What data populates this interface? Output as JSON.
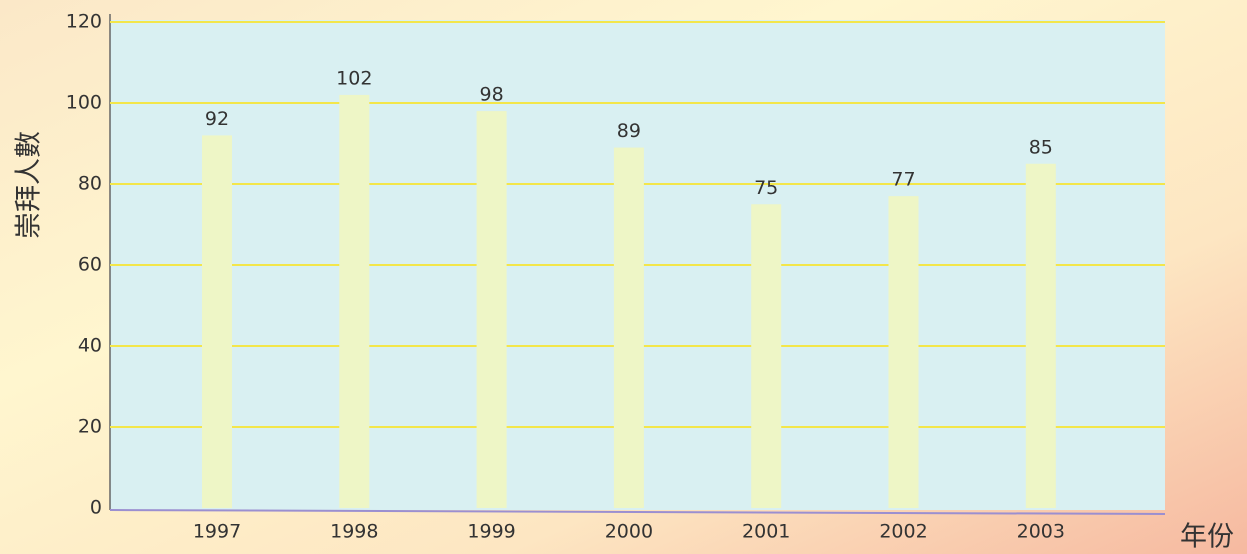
{
  "chart_data": {
    "type": "bar",
    "ylabel": "崇拜人數",
    "xlabel": "年份",
    "categories": [
      "1997",
      "1998",
      "1999",
      "2000",
      "2001",
      "2002",
      "2003"
    ],
    "values": [
      92,
      102,
      98,
      89,
      75,
      77,
      85
    ],
    "color": "#eef6c6",
    "ylim": [
      0,
      120
    ],
    "yticks": [
      0,
      20,
      40,
      60,
      80,
      100,
      120
    ],
    "grid": true,
    "grid_color": "#f3e64a"
  }
}
